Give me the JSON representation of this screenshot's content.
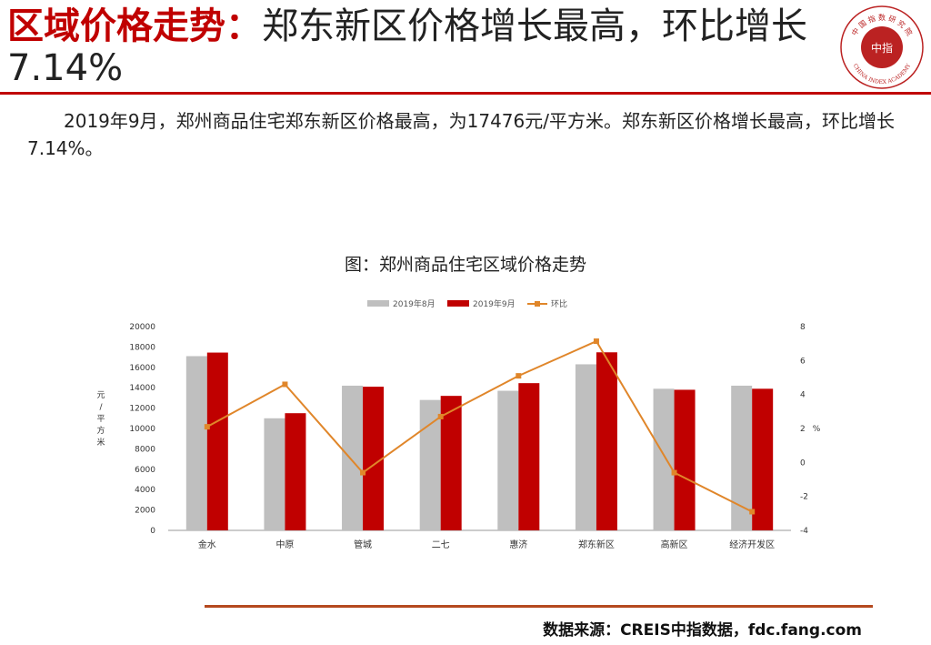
{
  "header": {
    "title_highlight": "区域价格走势：",
    "title_rest": "郑东新区价格增长最高，环比增长7.14%",
    "logo_text_top": "中 国 指 数 研 究 院",
    "logo_text_bottom": "CHINA INDEX ACADEMY",
    "logo_center": "中指"
  },
  "intro": "2019年9月，郑州商品住宅郑东新区价格最高，为17476元/平方米。郑东新区价格增长最高，环比增长7.14%。",
  "chart_title": "图：郑州商品住宅区域价格走势",
  "footer": {
    "source": "数据来源：CREIS中指数据，fdc.fang.com"
  },
  "colors": {
    "accent": "#c00000",
    "aug_bar": "#bfbfbf",
    "sep_bar": "#c00000",
    "line": "#e0862a",
    "footer_rule": "#b5491f"
  },
  "chart_data": {
    "type": "bar",
    "categories": [
      "金水",
      "中原",
      "管城",
      "二七",
      "惠济",
      "郑东新区",
      "高新区",
      "经济开发区"
    ],
    "series": [
      {
        "name": "2019年8月",
        "type": "bar",
        "axis": "left",
        "values": [
          17100,
          11000,
          14200,
          12800,
          13700,
          16300,
          13900,
          14200
        ]
      },
      {
        "name": "2019年9月",
        "type": "bar",
        "axis": "left",
        "values": [
          17450,
          11500,
          14100,
          13200,
          14450,
          17476,
          13800,
          13900
        ]
      },
      {
        "name": "环比",
        "type": "line",
        "axis": "right",
        "values": [
          2.1,
          4.6,
          -0.6,
          2.7,
          5.1,
          7.14,
          -0.6,
          -2.9
        ]
      }
    ],
    "ylabel": "元/平方米",
    "ylabel_right": "%",
    "ylim": [
      0,
      20000
    ],
    "yticks": [
      0,
      2000,
      4000,
      6000,
      8000,
      10000,
      12000,
      14000,
      16000,
      18000,
      20000
    ],
    "ylim_right": [
      -4,
      8
    ],
    "yticks_right": [
      -4,
      -2,
      0,
      2,
      4,
      6,
      8
    ],
    "legend_position": "top-center",
    "grid": false
  }
}
